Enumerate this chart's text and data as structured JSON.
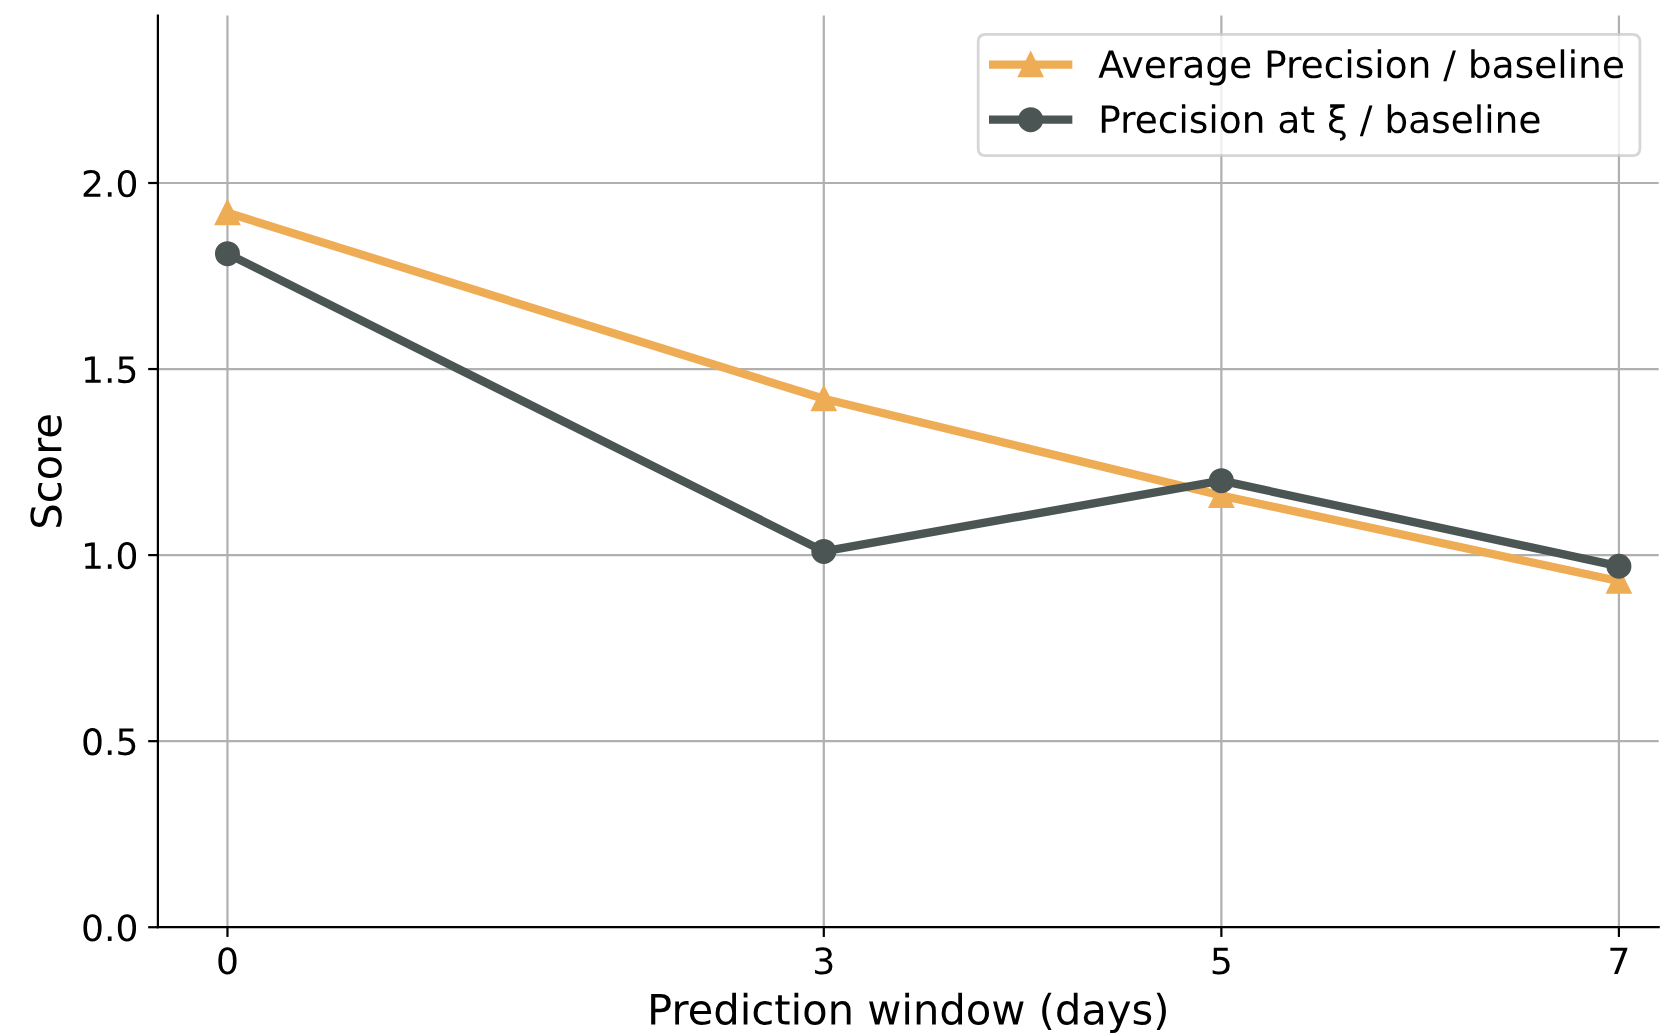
{
  "chart_data": {
    "type": "line",
    "xlabel": "Prediction window (days)",
    "ylabel": "Score",
    "x": [
      0,
      3,
      5,
      7
    ],
    "series": [
      {
        "name": "Average Precision / baseline",
        "color": "#eeac55",
        "marker": "triangle",
        "values": [
          1.92,
          1.42,
          1.16,
          0.93
        ]
      },
      {
        "name": "Precision at ξ / baseline",
        "color": "#4b5654",
        "marker": "circle",
        "values": [
          1.81,
          1.01,
          1.2,
          0.97
        ]
      }
    ],
    "xlim": [
      -0.35,
      7.2
    ],
    "xticks": [
      0,
      3,
      5,
      7
    ],
    "ylim": [
      0,
      2.45
    ],
    "yticks": [
      {
        "value": 0,
        "label": "0.0"
      },
      {
        "value": 0.5,
        "label": "0.5"
      },
      {
        "value": 1,
        "label": "1.0"
      },
      {
        "value": 1.5,
        "label": "1.5"
      },
      {
        "value": 2,
        "label": "2.0"
      }
    ],
    "grid": true,
    "legend": "top right",
    "line_style": "solid"
  }
}
